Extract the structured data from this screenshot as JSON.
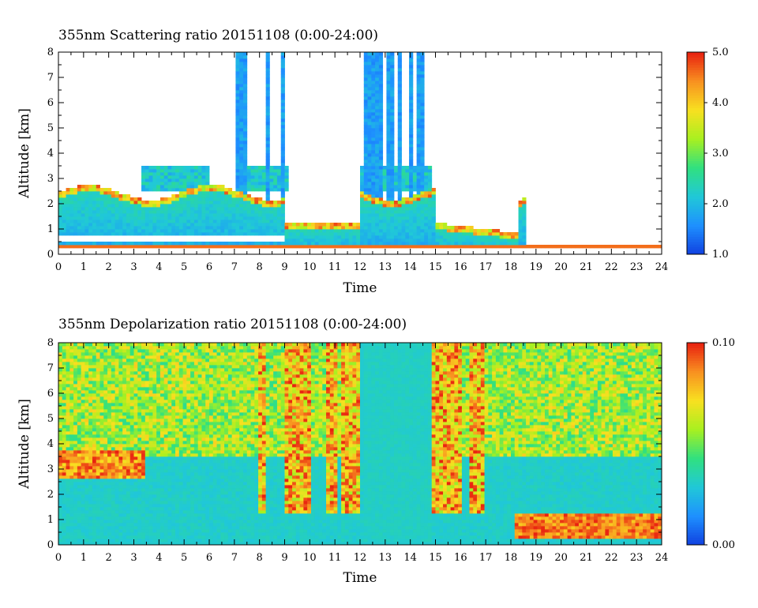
{
  "chart_data": [
    {
      "type": "heatmap",
      "title": "355nm Scattering ratio  20151108 (0:00-24:00)",
      "xlabel": "Time",
      "ylabel": "Altitude [km]",
      "xlim": [
        0,
        24
      ],
      "ylim": [
        0,
        8
      ],
      "x_ticks": [
        "0",
        "1",
        "2",
        "3",
        "4",
        "5",
        "6",
        "7",
        "8",
        "9",
        "10",
        "11",
        "12",
        "13",
        "14",
        "15",
        "16",
        "17",
        "18",
        "19",
        "20",
        "21",
        "22",
        "23",
        "24"
      ],
      "y_ticks": [
        "0",
        "1",
        "2",
        "3",
        "4",
        "5",
        "6",
        "7",
        "8"
      ],
      "colorbar": {
        "range": [
          1.0,
          5.0
        ],
        "tick_labels": [
          "1.0",
          "2.0",
          "3.0",
          "4.0",
          "5.0"
        ],
        "colors": [
          "#1040e0",
          "#1e90ff",
          "#20c8d8",
          "#30e080",
          "#a8f020",
          "#f8e020",
          "#f89020",
          "#e82010"
        ]
      },
      "grid": false
    },
    {
      "type": "heatmap",
      "title": "355nm Depolarization ratio  20151108 (0:00-24:00)",
      "xlabel": "Time",
      "ylabel": "Altitude [km]",
      "xlim": [
        0,
        24
      ],
      "ylim": [
        0,
        8
      ],
      "x_ticks": [
        "0",
        "1",
        "2",
        "3",
        "4",
        "5",
        "6",
        "7",
        "8",
        "9",
        "10",
        "11",
        "12",
        "13",
        "14",
        "15",
        "16",
        "17",
        "18",
        "19",
        "20",
        "21",
        "22",
        "23",
        "24"
      ],
      "y_ticks": [
        "0",
        "1",
        "2",
        "3",
        "4",
        "5",
        "6",
        "7",
        "8"
      ],
      "colorbar": {
        "range": [
          0.0,
          0.1
        ],
        "tick_labels": [
          "0.00",
          "0.10"
        ],
        "colors": [
          "#1040e0",
          "#1e90ff",
          "#20c8d8",
          "#30e080",
          "#a8f020",
          "#f8e020",
          "#f89020",
          "#e82010"
        ]
      },
      "grid": false
    }
  ]
}
